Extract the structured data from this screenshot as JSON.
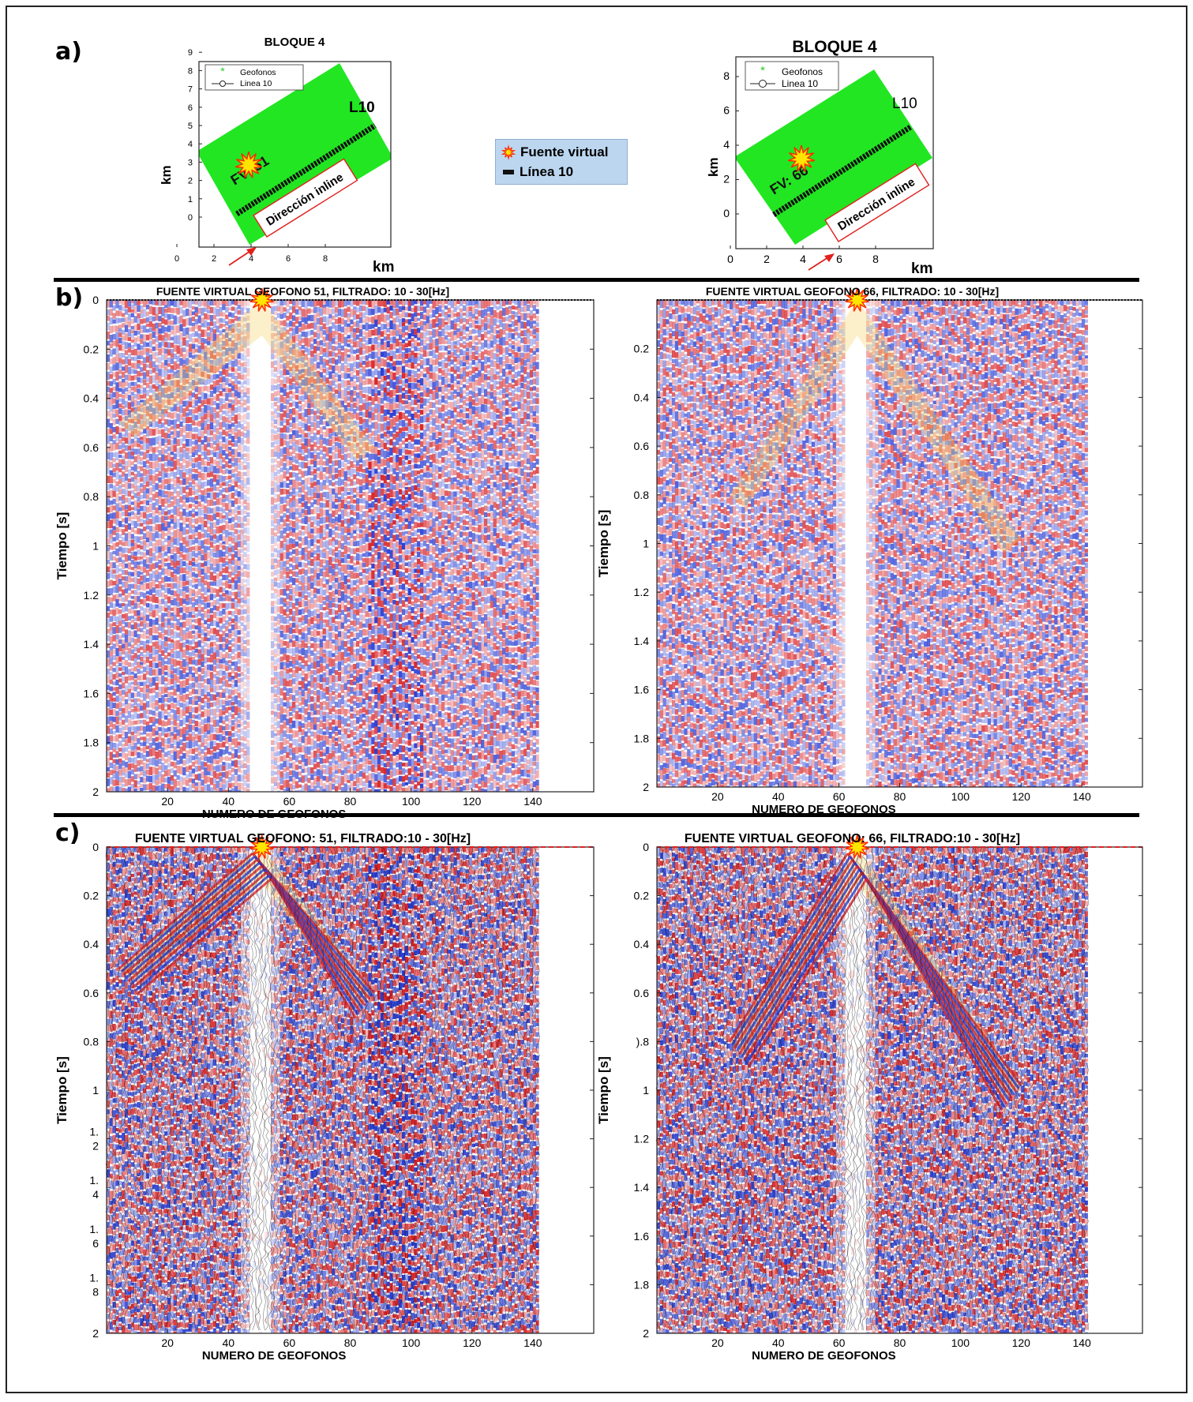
{
  "figure": {
    "panel_labels": [
      "a)",
      "b)",
      "c)"
    ],
    "legend": {
      "source_label": "Fuente virtual",
      "line_label": "Línea 10"
    },
    "colors": {
      "geophone_area": "#22e622",
      "positive": "#d8262a",
      "negative": "#2a3fd4",
      "source_star": "#ffe600",
      "source_star_edge": "#ff2a00",
      "arrow": "#e0201c",
      "dashed_line": "#e02020"
    }
  },
  "maps": [
    {
      "title": "BLOQUE 4",
      "xlabel": "km",
      "ylabel": "km",
      "xticks": [
        "0",
        "2",
        "4",
        "6",
        "8"
      ],
      "yticks": [
        "0",
        "1",
        "2",
        "3",
        "4",
        "5",
        "6",
        "7",
        "8",
        "9"
      ],
      "legend": [
        "Geofonos",
        "Linea 10"
      ],
      "line_name": "L10",
      "source_label": "FV: 51",
      "direction_label": "Dirección inline"
    },
    {
      "title": "BLOQUE 4",
      "xlabel": "km",
      "ylabel": "km",
      "xticks": [
        "0",
        "2",
        "4",
        "6",
        "8"
      ],
      "yticks": [
        "0",
        "2",
        "4",
        "6",
        "8"
      ],
      "legend": [
        "Geofonos",
        "Linea 10"
      ],
      "line_name": "L10",
      "source_label": "FV: 66",
      "direction_label": "Dirección inline"
    }
  ],
  "chart_data": [
    {
      "type": "heatmap",
      "panel": "b-left",
      "title": "FUENTE VIRTUAL GEOFONO 51, FILTRADO: 10 - 30[Hz]",
      "xlabel": "NUMERO DE GEOFONOS",
      "ylabel": "Tiempo [s]",
      "x_ticks": [
        "20",
        "40",
        "60",
        "80",
        "100",
        "120",
        "140"
      ],
      "y_ticks": [
        "0",
        "0.2",
        "0.4",
        "0.6",
        "0.8",
        "1",
        "1.2",
        "1.4",
        "1.6",
        "1.8",
        "2"
      ],
      "xlim": [
        0,
        160
      ],
      "ylim": [
        0,
        2
      ],
      "source_geophone": 51,
      "n_traces": 142
    },
    {
      "type": "heatmap",
      "panel": "b-right",
      "title": "FUENTE VIRTUAL GEOFONO 66, FILTRADO: 10 - 30[Hz]",
      "xlabel": "NUMERO DE GEOFONOS",
      "ylabel": "Tiempo [s]",
      "x_ticks": [
        "20",
        "40",
        "60",
        "80",
        "100",
        "120",
        "140"
      ],
      "y_ticks": [
        "0.2",
        "0.4",
        "0.6",
        "0.8",
        "1",
        "1.2",
        "1.4",
        "1.6",
        "1.8",
        "2"
      ],
      "xlim": [
        0,
        160
      ],
      "ylim": [
        0,
        2
      ],
      "source_geophone": 66,
      "n_traces": 142
    },
    {
      "type": "heatmap",
      "panel": "c-left",
      "title": "FUENTE VIRTUAL GEOFONO: 51, FILTRADO:10 - 30[Hz]",
      "xlabel": "NUMERO DE GEOFONOS",
      "ylabel": "Tiempo [s]",
      "x_ticks": [
        "20",
        "40",
        "60",
        "80",
        "100",
        "120",
        "140"
      ],
      "y_ticks": [
        "0",
        "0.2",
        "0.4",
        "0.6",
        "0.8",
        "1",
        "1.\n2",
        "1.\n4",
        "1.\n6",
        "1.\n8",
        "2"
      ],
      "xlim": [
        0,
        160
      ],
      "ylim": [
        0,
        2
      ],
      "source_geophone": 51,
      "n_traces": 142
    },
    {
      "type": "heatmap",
      "panel": "c-right",
      "title": "FUENTE VIRTUAL GEOFONO: 66, FILTRADO:10 - 30[Hz]",
      "xlabel": "NUMERO DE GEOFONOS",
      "ylabel": "Tiempo [s]",
      "x_ticks": [
        "20",
        "40",
        "60",
        "80",
        "100",
        "120",
        "140"
      ],
      "y_ticks": [
        "0",
        "0.2",
        "0.4",
        "0.6",
        ").8",
        "1",
        "1.2",
        "1.4",
        "1.6",
        "1.8",
        "2"
      ],
      "xlim": [
        0,
        160
      ],
      "ylim": [
        0,
        2
      ],
      "source_geophone": 66,
      "n_traces": 142
    }
  ]
}
